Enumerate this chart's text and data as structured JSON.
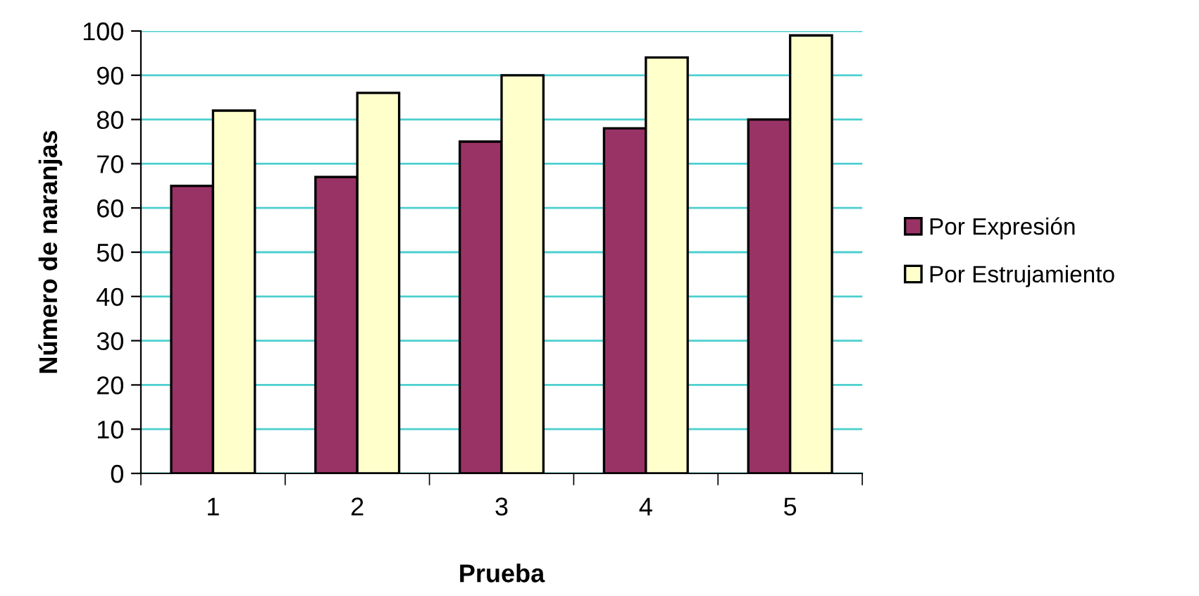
{
  "chart_data": {
    "type": "bar",
    "xlabel": "Prueba",
    "ylabel": "Número de naranjas",
    "categories": [
      "1",
      "2",
      "3",
      "4",
      "5"
    ],
    "series": [
      {
        "name": "Por Expresión",
        "color": "#993366",
        "values": [
          65,
          67,
          75,
          78,
          80
        ]
      },
      {
        "name": "Por Estrujamiento",
        "color": "#ffffcc",
        "values": [
          82,
          86,
          90,
          94,
          99
        ]
      }
    ],
    "ylim": [
      0,
      100
    ],
    "yticks": [
      0,
      10,
      20,
      30,
      40,
      50,
      60,
      70,
      80,
      90,
      100
    ],
    "grid": "y",
    "legend": "right"
  }
}
